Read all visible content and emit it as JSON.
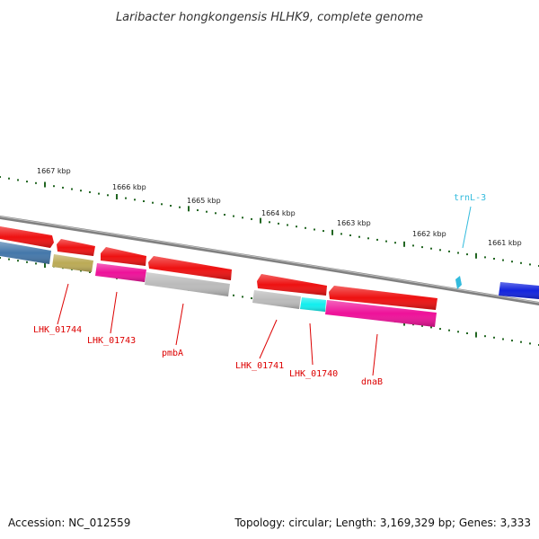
{
  "header": {
    "title": "Laribacter hongkongensis HLHK9, complete genome"
  },
  "footer": {
    "accession": "Accession: NC_012559",
    "summary": "Topology: circular; Length: 3,169,329 bp; Genes: 3,333"
  },
  "kbp_marks": [
    "1667 kbp",
    "1666 kbp",
    "1665 kbp",
    "1664 kbp",
    "1663 kbp",
    "1662 kbp",
    "1661 kbp"
  ],
  "gene_labels": [
    {
      "text": "LHK_01744",
      "color": "#dd0000"
    },
    {
      "text": "LHK_01743",
      "color": "#dd0000"
    },
    {
      "text": "pmbA",
      "color": "#dd0000"
    },
    {
      "text": "LHK_01741",
      "color": "#dd0000"
    },
    {
      "text": "LHK_01740",
      "color": "#dd0000"
    },
    {
      "text": "dnaB",
      "color": "#dd0000"
    },
    {
      "text": "trnL-3",
      "color": "#33bbdd"
    }
  ],
  "colors": {
    "backbone": "#808080",
    "tick": "#226622",
    "gene_red": "#ee1111",
    "gene_magenta": "#ee1199",
    "gene_grey": "#bbbbbb",
    "gene_steelblue": "#4477aa",
    "gene_olive": "#bbaa55",
    "gene_cyan": "#11eeee",
    "gene_blue": "#1122dd",
    "trna": "#33bbdd"
  }
}
